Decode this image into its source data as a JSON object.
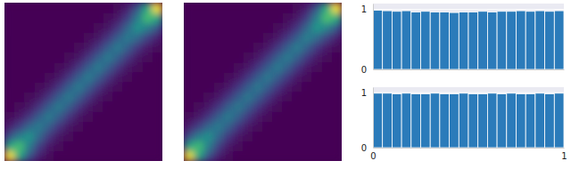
{
  "chart_data": [
    {
      "type": "heatmap",
      "xlim": [
        0,
        1
      ],
      "ylim": [
        0,
        1
      ],
      "tick_labels": false,
      "cells": [
        [
          100,
          60,
          25,
          8,
          2,
          0,
          0,
          0,
          0,
          0,
          0,
          0,
          0,
          0,
          0,
          0
        ],
        [
          60,
          70,
          42,
          18,
          6,
          2,
          0,
          0,
          0,
          0,
          0,
          0,
          0,
          0,
          0,
          0
        ],
        [
          25,
          42,
          52,
          33,
          15,
          5,
          2,
          0,
          0,
          0,
          0,
          0,
          0,
          0,
          0,
          0
        ],
        [
          8,
          18,
          33,
          42,
          29,
          15,
          5,
          2,
          0,
          0,
          0,
          0,
          0,
          0,
          0,
          0
        ],
        [
          2,
          6,
          15,
          29,
          42,
          29,
          15,
          5,
          2,
          0,
          0,
          0,
          0,
          0,
          0,
          0
        ],
        [
          0,
          2,
          5,
          15,
          29,
          42,
          29,
          15,
          5,
          2,
          0,
          0,
          0,
          0,
          0,
          0
        ],
        [
          0,
          0,
          2,
          5,
          15,
          29,
          42,
          29,
          15,
          5,
          2,
          0,
          0,
          0,
          0,
          0
        ],
        [
          0,
          0,
          0,
          2,
          5,
          15,
          29,
          42,
          29,
          15,
          5,
          2,
          0,
          0,
          0,
          0
        ],
        [
          0,
          0,
          0,
          0,
          2,
          5,
          15,
          29,
          42,
          29,
          15,
          5,
          2,
          0,
          0,
          0
        ],
        [
          0,
          0,
          0,
          0,
          0,
          2,
          5,
          15,
          29,
          42,
          29,
          15,
          5,
          2,
          0,
          0
        ],
        [
          0,
          0,
          0,
          0,
          0,
          0,
          2,
          5,
          15,
          29,
          42,
          29,
          15,
          5,
          2,
          0
        ],
        [
          0,
          0,
          0,
          0,
          0,
          0,
          0,
          2,
          5,
          15,
          29,
          42,
          29,
          15,
          6,
          2
        ],
        [
          0,
          0,
          0,
          0,
          0,
          0,
          0,
          0,
          2,
          5,
          15,
          29,
          42,
          33,
          18,
          8
        ],
        [
          0,
          0,
          0,
          0,
          0,
          0,
          0,
          0,
          0,
          2,
          5,
          15,
          33,
          52,
          42,
          25
        ],
        [
          0,
          0,
          0,
          0,
          0,
          0,
          0,
          0,
          0,
          0,
          2,
          6,
          18,
          42,
          70,
          60
        ],
        [
          0,
          0,
          0,
          0,
          0,
          0,
          0,
          0,
          0,
          0,
          0,
          2,
          8,
          25,
          60,
          100
        ]
      ]
    },
    {
      "type": "heatmap",
      "xlim": [
        0,
        1
      ],
      "ylim": [
        0,
        1
      ],
      "tick_labels": false,
      "cells": [
        [
          96,
          58,
          24,
          8,
          2,
          0,
          0,
          0,
          0,
          0,
          0,
          0,
          0,
          0,
          0,
          0
        ],
        [
          58,
          68,
          41,
          18,
          6,
          2,
          0,
          0,
          0,
          0,
          0,
          0,
          0,
          0,
          0,
          0
        ],
        [
          24,
          41,
          50,
          32,
          15,
          5,
          2,
          0,
          0,
          0,
          0,
          0,
          0,
          0,
          0,
          0
        ],
        [
          8,
          18,
          32,
          41,
          29,
          15,
          5,
          2,
          0,
          0,
          0,
          0,
          0,
          0,
          0,
          0
        ],
        [
          2,
          6,
          15,
          29,
          41,
          29,
          15,
          5,
          2,
          0,
          0,
          0,
          0,
          0,
          0,
          0
        ],
        [
          0,
          2,
          5,
          15,
          29,
          40,
          28,
          15,
          5,
          2,
          0,
          0,
          0,
          0,
          0,
          0
        ],
        [
          0,
          0,
          2,
          5,
          15,
          28,
          40,
          28,
          15,
          5,
          2,
          0,
          0,
          0,
          0,
          0
        ],
        [
          0,
          0,
          0,
          2,
          5,
          15,
          28,
          40,
          28,
          15,
          5,
          2,
          0,
          0,
          0,
          0
        ],
        [
          0,
          0,
          0,
          0,
          2,
          5,
          15,
          28,
          40,
          28,
          15,
          5,
          2,
          0,
          0,
          0
        ],
        [
          0,
          0,
          0,
          0,
          0,
          2,
          5,
          15,
          28,
          41,
          29,
          15,
          5,
          2,
          0,
          0
        ],
        [
          0,
          0,
          0,
          0,
          0,
          0,
          2,
          5,
          15,
          29,
          41,
          29,
          15,
          5,
          2,
          0
        ],
        [
          0,
          0,
          0,
          0,
          0,
          0,
          0,
          2,
          5,
          15,
          29,
          42,
          29,
          15,
          6,
          2
        ],
        [
          0,
          0,
          0,
          0,
          0,
          0,
          0,
          0,
          2,
          5,
          15,
          29,
          43,
          33,
          18,
          8
        ],
        [
          0,
          0,
          0,
          0,
          0,
          0,
          0,
          0,
          0,
          2,
          5,
          15,
          33,
          53,
          43,
          26
        ],
        [
          0,
          0,
          0,
          0,
          0,
          0,
          0,
          0,
          0,
          0,
          2,
          6,
          18,
          43,
          71,
          61
        ],
        [
          0,
          0,
          0,
          0,
          0,
          0,
          0,
          0,
          0,
          0,
          0,
          2,
          8,
          26,
          61,
          98
        ]
      ]
    },
    {
      "type": "histogram",
      "color": "#2b7bba",
      "grid": true,
      "tick_labels": "y",
      "xlim": [
        0,
        1
      ],
      "ylim": [
        0,
        1.1
      ],
      "yticks": [
        0,
        1
      ],
      "bins": [
        0,
        0.05,
        0.1,
        0.15,
        0.2,
        0.25,
        0.3,
        0.35,
        0.4,
        0.45,
        0.5,
        0.55,
        0.6,
        0.65,
        0.7,
        0.75,
        0.8,
        0.85,
        0.9,
        0.95,
        1
      ],
      "counts": [
        0.99,
        0.98,
        0.97,
        0.98,
        0.96,
        0.97,
        0.96,
        0.96,
        0.95,
        0.96,
        0.96,
        0.97,
        0.96,
        0.97,
        0.97,
        0.98,
        0.97,
        0.98,
        0.97,
        0.98
      ]
    },
    {
      "type": "histogram",
      "color": "#2b7bba",
      "grid": true,
      "xlim": [
        0,
        1
      ],
      "ylim": [
        0,
        1.1
      ],
      "xticks": [
        0,
        1
      ],
      "yticks": [
        0,
        1
      ],
      "bins": [
        0,
        0.05,
        0.1,
        0.15,
        0.2,
        0.25,
        0.3,
        0.35,
        0.4,
        0.45,
        0.5,
        0.55,
        0.6,
        0.65,
        0.7,
        0.75,
        0.8,
        0.85,
        0.9,
        0.95,
        1
      ],
      "counts": [
        0.99,
        0.99,
        0.98,
        0.99,
        0.98,
        0.98,
        0.99,
        0.98,
        0.98,
        0.99,
        0.98,
        0.98,
        0.99,
        0.98,
        0.99,
        0.98,
        0.98,
        0.99,
        0.98,
        0.99
      ]
    }
  ]
}
